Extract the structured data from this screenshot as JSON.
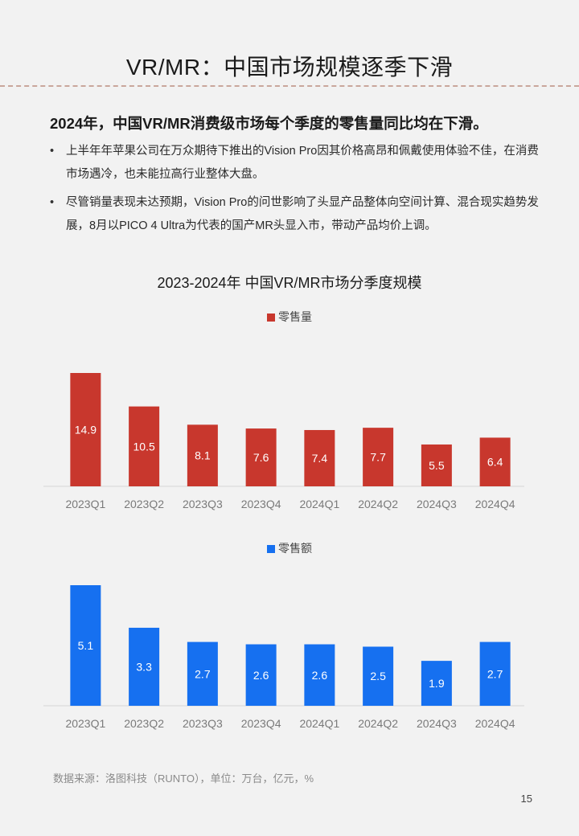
{
  "header": {
    "title": "VR/MR：中国市场规模逐季下滑"
  },
  "summary": {
    "lead": "2024年，中国VR/MR消费级市场每个季度的零售量同比均在下滑。",
    "bullets": [
      "上半年年苹果公司在万众期待下推出的Vision Pro因其价格高昂和佩戴使用体验不佳，在消费市场遇冷，也未能拉高行业整体大盘。",
      "尽管销量表现未达预期，Vision Pro的问世影响了头显产品整体向空间计算、混合现实趋势发展，8月以PICO 4 Ultra为代表的国产MR头显入市，带动产品均价上调。"
    ]
  },
  "chart_data": [
    {
      "type": "bar",
      "title": "2023-2024年 中国VR/MR市场分季度规模",
      "categories": [
        "2023Q1",
        "2023Q2",
        "2023Q3",
        "2023Q4",
        "2024Q1",
        "2024Q2",
        "2024Q3",
        "2024Q4"
      ],
      "series": [
        {
          "name": "零售量",
          "color": "#c8372d",
          "values": [
            14.9,
            10.5,
            8.1,
            7.6,
            7.4,
            7.7,
            5.5,
            6.4
          ]
        }
      ],
      "legend_position": "top-center",
      "grid": false
    },
    {
      "type": "bar",
      "title": "",
      "categories": [
        "2023Q1",
        "2023Q2",
        "2023Q3",
        "2023Q4",
        "2024Q1",
        "2024Q2",
        "2024Q3",
        "2024Q4"
      ],
      "series": [
        {
          "name": "零售额",
          "color": "#1670f0",
          "values": [
            5.1,
            3.3,
            2.7,
            2.6,
            2.6,
            2.5,
            1.9,
            2.7
          ]
        }
      ],
      "legend_position": "top-center",
      "grid": false
    }
  ],
  "footer": {
    "source": "数据来源：洛图科技（RUNTO），单位：万台，亿元，%",
    "page": "15"
  }
}
